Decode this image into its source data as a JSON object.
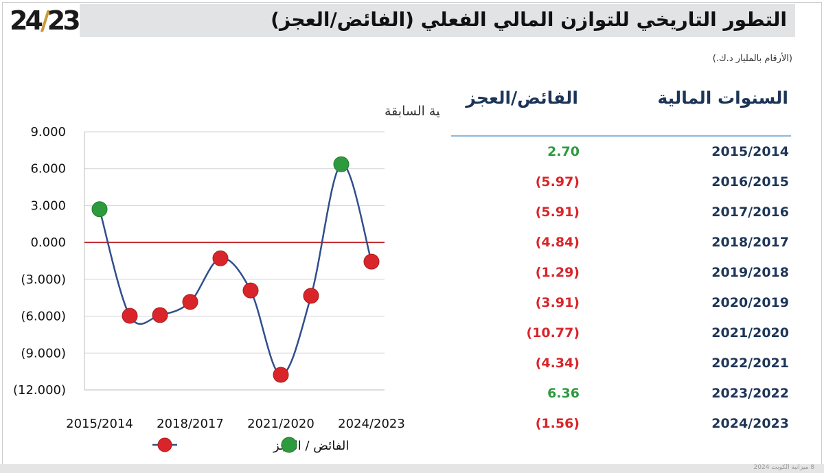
{
  "logo": {
    "left": "24",
    "slash": "/",
    "right": "23"
  },
  "title": "التطور التاريخي للتوازن المالي الفعلي (الفائض/العجز)",
  "units": "(الأرقام بالمليار د.ك.)",
  "footer": "8  ميزانية الكويت 2024",
  "colors": {
    "positive": "#2e9a3e",
    "negative": "#d9252a",
    "header": "#1d3557",
    "zero_line": "#c0282e",
    "line": "#2f4e8c"
  },
  "table": {
    "headers": {
      "years": "السنوات المالية",
      "values": "الفائض/العجز"
    },
    "rows": [
      {
        "year": "2015/2014",
        "value": "2.70",
        "sign": "pos"
      },
      {
        "year": "2016/2015",
        "value": "(5.97)",
        "sign": "neg"
      },
      {
        "year": "2017/2016",
        "value": "(5.91)",
        "sign": "neg"
      },
      {
        "year": "2018/2017",
        "value": "(4.84)",
        "sign": "neg"
      },
      {
        "year": "2019/2018",
        "value": "(1.29)",
        "sign": "neg"
      },
      {
        "year": "2020/2019",
        "value": "(3.91)",
        "sign": "neg"
      },
      {
        "year": "2021/2020",
        "value": "(10.77)",
        "sign": "neg"
      },
      {
        "year": "2022/2021",
        "value": "(4.34)",
        "sign": "neg"
      },
      {
        "year": "2023/2022",
        "value": "6.36",
        "sign": "pos"
      },
      {
        "year": "2024/2023",
        "value": "(1.56)",
        "sign": "neg"
      }
    ]
  },
  "chart_data": {
    "type": "line",
    "title": "مقارنة الفائض / العجز السنوات المالية السابقة",
    "categories": [
      "2015/2014",
      "2016/2015",
      "2017/2016",
      "2018/2017",
      "2019/2018",
      "2020/2019",
      "2021/2020",
      "2022/2021",
      "2023/2022",
      "2024/2023"
    ],
    "values": [
      2.7,
      -5.97,
      -5.91,
      -4.84,
      -1.29,
      -3.91,
      -10.77,
      -4.34,
      6.36,
      -1.56
    ],
    "x_tick_labels": [
      "2015/2014",
      "2018/2017",
      "2021/2020",
      "2024/2023"
    ],
    "x_tick_indices": [
      0,
      3,
      6,
      9
    ],
    "y_ticks": [
      9,
      6,
      3,
      0,
      -3,
      -6,
      -9,
      -12
    ],
    "y_tick_labels": [
      "9.000",
      "6.000",
      "3.000",
      "0.000",
      "(3.000)",
      "(6.000)",
      "(9.000)",
      "(12.000)"
    ],
    "ylim": [
      -12,
      9
    ],
    "grid": true,
    "legend": {
      "label": "الفائض / العجز",
      "position": "bottom"
    }
  }
}
